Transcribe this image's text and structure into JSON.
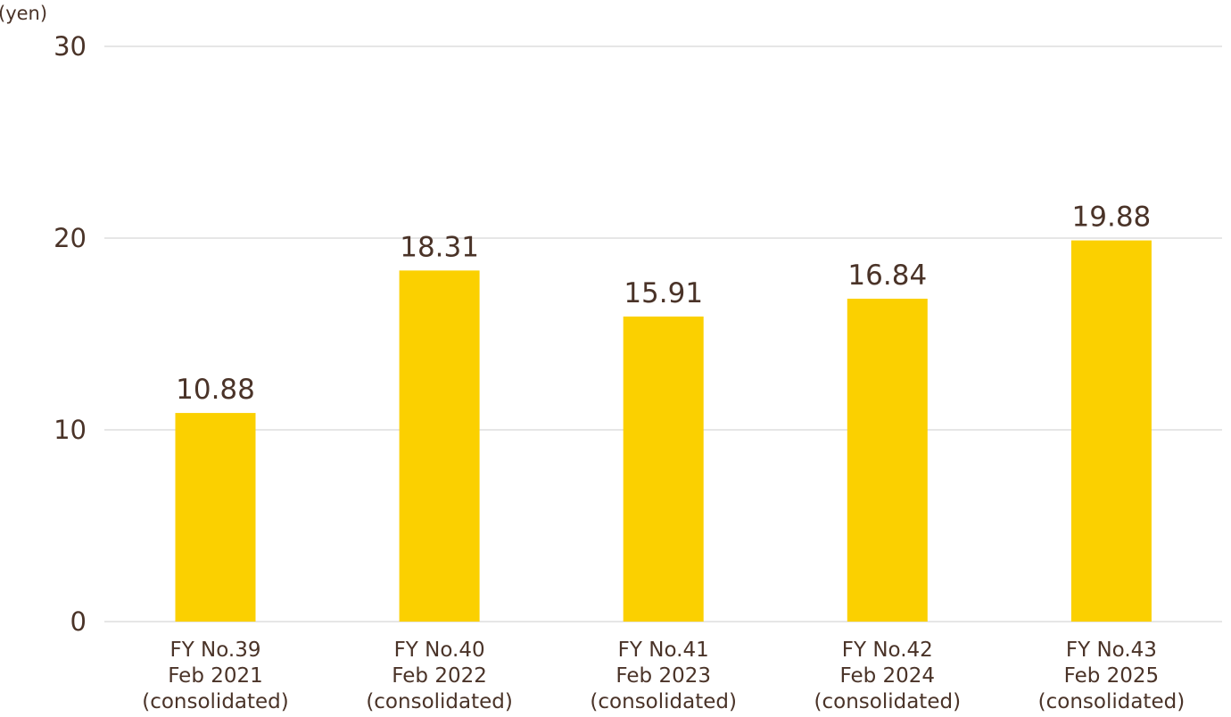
{
  "chart_data": {
    "type": "bar",
    "unit_label": "(yen)",
    "categories": [
      [
        "FY No.39",
        "Feb 2021",
        "(consolidated)"
      ],
      [
        "FY No.40",
        "Feb 2022",
        "(consolidated)"
      ],
      [
        "FY No.41",
        "Feb 2023",
        "(consolidated)"
      ],
      [
        "FY No.42",
        "Feb 2024",
        "(consolidated)"
      ],
      [
        "FY No.43",
        "Feb 2025",
        "(consolidated)"
      ]
    ],
    "values": [
      10.88,
      18.31,
      15.91,
      16.84,
      19.88
    ],
    "value_labels": [
      "10.88",
      "18.31",
      "15.91",
      "16.84",
      "19.88"
    ],
    "ylim": [
      0,
      30
    ],
    "yticks": [
      0,
      10,
      20,
      30
    ],
    "grid": true,
    "legend": false,
    "colors": {
      "bar": "#fbd000",
      "grid": "#e6e6e6",
      "text": "#4a3328"
    }
  }
}
